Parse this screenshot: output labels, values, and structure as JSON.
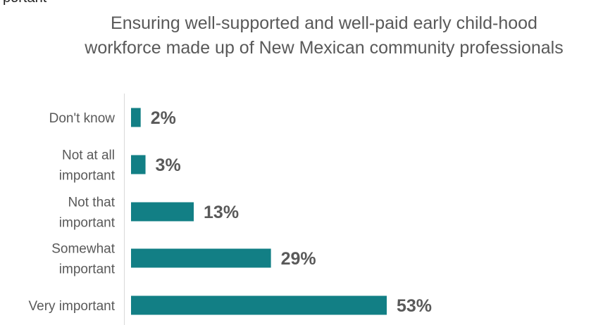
{
  "cut_off_text": "portant",
  "chart_data": {
    "type": "bar",
    "orientation": "horizontal",
    "title": "Ensuring well-supported and well-paid early child-hood workforce made up of New Mexican community professionals",
    "categories": [
      "Don't know",
      "Not at all important",
      "Not that important",
      "Somewhat important",
      "Very important"
    ],
    "category_lines": [
      [
        "Don't know"
      ],
      [
        "Not at all",
        "important"
      ],
      [
        "Not that",
        "important"
      ],
      [
        "Somewhat",
        "important"
      ],
      [
        "Very important"
      ]
    ],
    "values": [
      2,
      3,
      13,
      29,
      53
    ],
    "value_labels": [
      "2%",
      "3%",
      "13%",
      "29%",
      "53%"
    ],
    "unit": "%",
    "bar_color": "#127F85",
    "grid": false,
    "legend": "none"
  }
}
